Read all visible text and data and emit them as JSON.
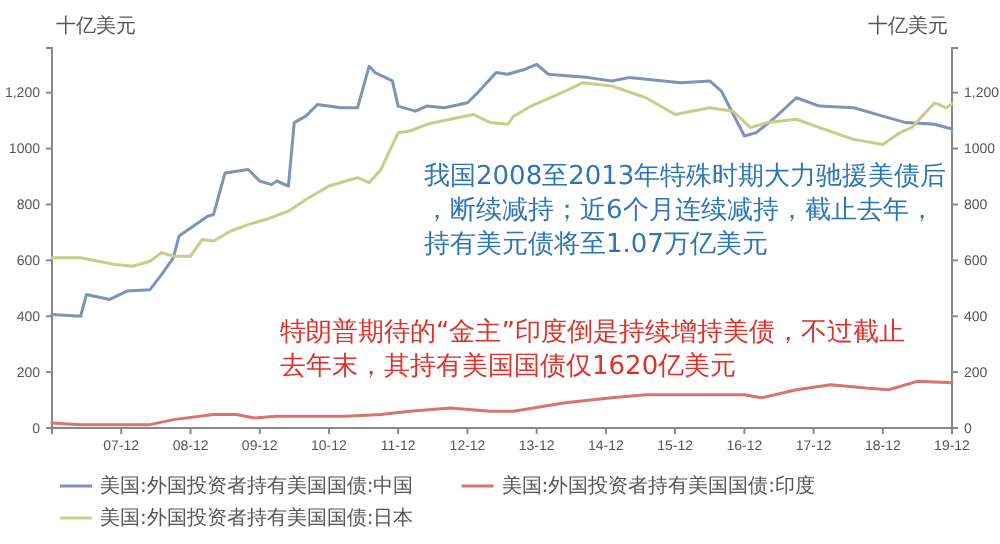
{
  "chart_data": {
    "type": "line",
    "ylabel": "十亿美元",
    "y2label": "十亿美元",
    "xlim": [
      "2006-12",
      "2019-12"
    ],
    "xticks": [
      {
        "value": "2007-12",
        "label": "07-12"
      },
      {
        "value": "2008-12",
        "label": "08-12"
      },
      {
        "value": "2009-12",
        "label": "09-12"
      },
      {
        "value": "2010-12",
        "label": "10-12"
      },
      {
        "value": "2011-12",
        "label": "11-12"
      },
      {
        "value": "2012-12",
        "label": "12-12"
      },
      {
        "value": "2013-12",
        "label": "13-12"
      },
      {
        "value": "2014-12",
        "label": "14-12"
      },
      {
        "value": "2015-12",
        "label": "15-12"
      },
      {
        "value": "2016-12",
        "label": "16-12"
      },
      {
        "value": "2017-12",
        "label": "17-12"
      },
      {
        "value": "2018-12",
        "label": "18-12"
      },
      {
        "value": "2019-12",
        "label": "19-12"
      }
    ],
    "ylim": [
      0,
      1360
    ],
    "yticks": [
      0,
      200,
      400,
      600,
      800,
      1000,
      {
        "value": 1200,
        "label": "1,200"
      }
    ],
    "y2lim": [
      0,
      1360
    ],
    "y2ticks": [
      0,
      200,
      400,
      600,
      800,
      1000,
      {
        "value": 1200,
        "label": "1,200"
      }
    ],
    "grid": false,
    "legend": "bottom",
    "marker": "none",
    "line_style": "solid",
    "annotations": [
      "我国2008至2013年特殊时期大力驰援美债后，断续减持；近6个月连续减持，截止去年，持有美元债将至1.07万亿美元",
      "特朗普期待的“金主”印度倒是持续增持美债，不过截止去年末，其持有美国国债仅1620亿美元"
    ],
    "series": [
      {
        "name": "美国:外国投资者持有美国国债:中国",
        "color": "#7f92b8",
        "x": [
          "2006-12",
          "2007-05",
          "2007-06",
          "2007-10",
          "2008-01",
          "2008-05",
          "2008-07",
          "2008-09",
          "2008-10",
          "2008-12",
          "2009-03",
          "2009-04",
          "2009-06",
          "2009-10",
          "2009-12",
          "2010-02",
          "2010-03",
          "2010-05",
          "2010-06",
          "2010-08",
          "2010-10",
          "2011-02",
          "2011-05",
          "2011-07",
          "2011-08",
          "2011-11",
          "2011-12",
          "2012-03",
          "2012-05",
          "2012-08",
          "2012-12",
          "2013-02",
          "2013-05",
          "2013-07",
          "2013-10",
          "2013-12",
          "2014-02",
          "2014-09",
          "2015-01",
          "2015-04",
          "2015-10",
          "2016-01",
          "2016-06",
          "2016-08",
          "2016-12",
          "2017-02",
          "2017-05",
          "2017-09",
          "2018-01",
          "2018-07",
          "2018-12",
          "2019-04",
          "2019-09",
          "2019-12"
        ],
        "values": [
          406,
          400,
          478,
          460,
          490,
          495,
          549,
          609,
          687,
          716,
          758,
          764,
          913,
          925,
          884,
          871,
          884,
          866,
          1093,
          1116,
          1158,
          1146,
          1146,
          1295,
          1272,
          1242,
          1152,
          1134,
          1152,
          1146,
          1164,
          1206,
          1272,
          1266,
          1284,
          1301,
          1266,
          1254,
          1242,
          1254,
          1242,
          1236,
          1242,
          1206,
          1045,
          1057,
          1105,
          1182,
          1152,
          1146,
          1116,
          1093,
          1087,
          1070
        ]
      },
      {
        "name": "美国:外国投资者持有美国国债:印度",
        "color": "#d9736e",
        "x": [
          "2006-12",
          "2007-05",
          "2007-11",
          "2008-05",
          "2008-09",
          "2009-04",
          "2009-08",
          "2009-11",
          "2010-03",
          "2011-03",
          "2011-09",
          "2012-02",
          "2012-09",
          "2013-04",
          "2013-08",
          "2014-05",
          "2015-01",
          "2015-07",
          "2016-04",
          "2016-12",
          "2017-03",
          "2017-09",
          "2018-03",
          "2018-09",
          "2019-01",
          "2019-06",
          "2019-12"
        ],
        "values": [
          18,
          12,
          12,
          12,
          30,
          48,
          48,
          36,
          42,
          42,
          48,
          60,
          72,
          60,
          60,
          90,
          108,
          119,
          119,
          119,
          108,
          137,
          155,
          143,
          137,
          167,
          162
        ]
      },
      {
        "name": "美国:外国投资者持有美国国债:日本",
        "color": "#c8cd8a",
        "x": [
          "2006-12",
          "2007-05",
          "2007-08",
          "2007-11",
          "2008-02",
          "2008-05",
          "2008-07",
          "2008-09",
          "2008-12",
          "2009-02",
          "2009-04",
          "2009-07",
          "2009-10",
          "2010-01",
          "2010-05",
          "2010-08",
          "2010-12",
          "2011-03",
          "2011-05",
          "2011-07",
          "2011-09",
          "2011-12",
          "2012-02",
          "2012-05",
          "2012-09",
          "2013-01",
          "2013-04",
          "2013-07",
          "2013-08",
          "2013-11",
          "2014-05",
          "2014-08",
          "2015-01",
          "2015-07",
          "2015-12",
          "2016-06",
          "2016-10",
          "2017-01",
          "2017-04",
          "2017-09",
          "2018-01",
          "2018-07",
          "2018-12",
          "2019-03",
          "2019-05",
          "2019-09",
          "2019-11",
          "2019-12"
        ],
        "values": [
          609,
          609,
          597,
          585,
          579,
          597,
          627,
          615,
          615,
          675,
          669,
          705,
          728,
          746,
          776,
          818,
          866,
          884,
          896,
          878,
          925,
          1057,
          1063,
          1087,
          1105,
          1122,
          1093,
          1087,
          1116,
          1152,
          1206,
          1236,
          1224,
          1182,
          1122,
          1146,
          1134,
          1075,
          1093,
          1105,
          1075,
          1033,
          1015,
          1057,
          1075,
          1164,
          1146,
          1160
        ]
      }
    ]
  }
}
